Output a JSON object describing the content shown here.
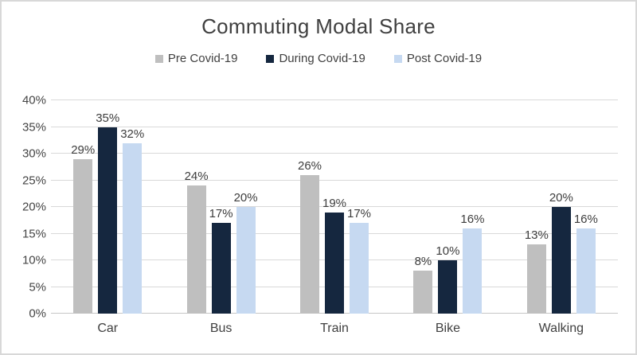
{
  "window": {
    "background": "#ffffff",
    "border_color": "#d8d8d8"
  },
  "chart_data": {
    "type": "bar",
    "title": "Commuting Modal Share",
    "categories": [
      "Car",
      "Bus",
      "Train",
      "Bike",
      "Walking"
    ],
    "series": [
      {
        "name": "Pre Covid-19",
        "color": "#BFBFBF",
        "values": [
          29,
          24,
          26,
          8,
          13
        ],
        "labels": [
          "29%",
          "24%",
          "26%",
          "8%",
          "13%"
        ]
      },
      {
        "name": "During Covid-19",
        "color": "#15273F",
        "values": [
          35,
          17,
          19,
          10,
          20
        ],
        "labels": [
          "35%",
          "17%",
          "19%",
          "10%",
          "20%"
        ]
      },
      {
        "name": "Post Covid-19",
        "color": "#C6D9F1",
        "values": [
          32,
          20,
          17,
          16,
          16
        ],
        "labels": [
          "32%",
          "20%",
          "17%",
          "16%",
          "16%"
        ]
      }
    ],
    "y_ticks": [
      "0%",
      "5%",
      "10%",
      "15%",
      "20%",
      "25%",
      "30%",
      "35%",
      "40%"
    ],
    "ylim": [
      0,
      40
    ],
    "grid": true,
    "legend_position": "top",
    "xlabel": "",
    "ylabel": "",
    "text_color": "#404040",
    "gridline_color": "#D9D9D9"
  }
}
